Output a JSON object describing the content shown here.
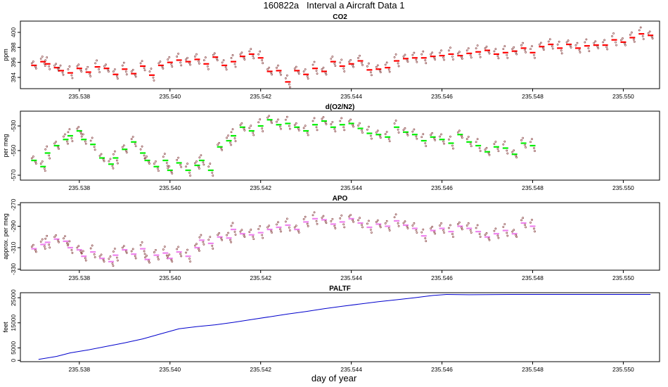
{
  "page_title": "160822a   Interval a Aircraft Data 1",
  "x_axis_label": "day of year",
  "chart_data": [
    {
      "type": "scatter",
      "title": "CO2",
      "ylabel": "ppm",
      "xlim": [
        235.5367,
        235.5508
      ],
      "ylim": [
        392.5,
        401.5
      ],
      "xticks": [
        "235.538",
        "235.540",
        "235.542",
        "235.544",
        "235.546",
        "235.548",
        "235.550"
      ],
      "yticks": [
        "394",
        "396",
        "398",
        "400"
      ],
      "series": [
        {
          "marker": "segments",
          "color": "#ff0000",
          "points": [
            [
              235.537,
              395.6
            ],
            [
              235.5372,
              396.1
            ],
            [
              235.5373,
              395.8
            ],
            [
              235.5375,
              395.3
            ],
            [
              235.5376,
              394.9
            ],
            [
              235.5378,
              394.6
            ],
            [
              235.538,
              395.2
            ],
            [
              235.5382,
              394.7
            ],
            [
              235.5384,
              395.4
            ],
            [
              235.5386,
              395.2
            ],
            [
              235.5388,
              394.4
            ],
            [
              235.539,
              395.1
            ],
            [
              235.5392,
              394.5
            ],
            [
              235.5394,
              395.5
            ],
            [
              235.5396,
              394.3
            ],
            [
              235.5398,
              395.6
            ],
            [
              235.54,
              396.0
            ],
            [
              235.5402,
              396.3
            ],
            [
              235.5404,
              396.1
            ],
            [
              235.5406,
              396.4
            ],
            [
              235.5408,
              395.8
            ],
            [
              235.541,
              396.7
            ],
            [
              235.5412,
              395.6
            ],
            [
              235.5414,
              396.1
            ],
            [
              235.5416,
              396.8
            ],
            [
              235.5418,
              397.1
            ],
            [
              235.542,
              396.6
            ],
            [
              235.5422,
              394.8
            ],
            [
              235.5424,
              394.9
            ],
            [
              235.5426,
              393.4
            ],
            [
              235.5428,
              394.9
            ],
            [
              235.543,
              394.4
            ],
            [
              235.5432,
              395.2
            ],
            [
              235.5434,
              394.8
            ],
            [
              235.5436,
              396.1
            ],
            [
              235.5438,
              395.5
            ],
            [
              235.544,
              395.8
            ],
            [
              235.5442,
              396.2
            ],
            [
              235.5444,
              395.0
            ],
            [
              235.5446,
              395.1
            ],
            [
              235.5448,
              395.3
            ],
            [
              235.545,
              396.2
            ],
            [
              235.5452,
              396.5
            ],
            [
              235.5454,
              396.6
            ],
            [
              235.5456,
              396.6
            ],
            [
              235.5458,
              396.8
            ],
            [
              235.546,
              396.9
            ],
            [
              235.5462,
              397.1
            ],
            [
              235.5464,
              396.9
            ],
            [
              235.5466,
              397.2
            ],
            [
              235.5468,
              397.4
            ],
            [
              235.547,
              397.6
            ],
            [
              235.5472,
              397.1
            ],
            [
              235.5474,
              397.3
            ],
            [
              235.5476,
              397.5
            ],
            [
              235.5478,
              397.9
            ],
            [
              235.548,
              397.3
            ],
            [
              235.5482,
              398.1
            ],
            [
              235.5484,
              398.4
            ],
            [
              235.5486,
              397.9
            ],
            [
              235.5488,
              398.4
            ],
            [
              235.549,
              397.9
            ],
            [
              235.5492,
              398.2
            ],
            [
              235.5494,
              398.3
            ],
            [
              235.5496,
              398.3
            ],
            [
              235.5498,
              399.0
            ],
            [
              235.55,
              398.7
            ],
            [
              235.5502,
              399.3
            ],
            [
              235.5504,
              399.8
            ],
            [
              235.5506,
              399.6
            ]
          ]
        }
      ]
    },
    {
      "type": "scatter",
      "title": "d(O2/N2)",
      "ylabel": "per meg",
      "xlim": [
        235.5367,
        235.5508
      ],
      "ylim": [
        -574,
        -518
      ],
      "xticks": [
        "235.538",
        "235.540",
        "235.542",
        "235.544",
        "235.546",
        "235.548",
        "235.550"
      ],
      "yticks": [
        "-570",
        "-550",
        "-530"
      ],
      "series": [
        {
          "marker": "segments",
          "color": "#00ee00",
          "points": [
            [
              235.537,
              -558
            ],
            [
              235.5372,
              -563
            ],
            [
              235.5373,
              -552
            ],
            [
              235.5375,
              -546
            ],
            [
              235.5377,
              -541
            ],
            [
              235.5378,
              -538
            ],
            [
              235.538,
              -534
            ],
            [
              235.5381,
              -541
            ],
            [
              235.5383,
              -545
            ],
            [
              235.5385,
              -556
            ],
            [
              235.5387,
              -561
            ],
            [
              235.5388,
              -556
            ],
            [
              235.539,
              -549
            ],
            [
              235.5392,
              -543
            ],
            [
              235.5394,
              -552
            ],
            [
              235.5395,
              -558
            ],
            [
              235.5397,
              -563
            ],
            [
              235.5399,
              -558
            ],
            [
              235.54,
              -566
            ],
            [
              235.5402,
              -560
            ],
            [
              235.5404,
              -566
            ],
            [
              235.5406,
              -562
            ],
            [
              235.5407,
              -558
            ],
            [
              235.5409,
              -566
            ],
            [
              235.5411,
              -547
            ],
            [
              235.5413,
              -542
            ],
            [
              235.5414,
              -538
            ],
            [
              235.5416,
              -531
            ],
            [
              235.5418,
              -534
            ],
            [
              235.542,
              -530
            ],
            [
              235.5422,
              -525
            ],
            [
              235.5424,
              -529
            ],
            [
              235.5426,
              -528
            ],
            [
              235.5428,
              -531
            ],
            [
              235.543,
              -534
            ],
            [
              235.5432,
              -529
            ],
            [
              235.5434,
              -526
            ],
            [
              235.5436,
              -531
            ],
            [
              235.5438,
              -529
            ],
            [
              235.544,
              -528
            ],
            [
              235.5442,
              -532
            ],
            [
              235.5444,
              -536
            ],
            [
              235.5446,
              -537
            ],
            [
              235.5448,
              -539
            ],
            [
              235.545,
              -531
            ],
            [
              235.5452,
              -535
            ],
            [
              235.5454,
              -537
            ],
            [
              235.5456,
              -542
            ],
            [
              235.5458,
              -539
            ],
            [
              235.546,
              -541
            ],
            [
              235.5462,
              -544
            ],
            [
              235.5464,
              -537
            ],
            [
              235.5466,
              -543
            ],
            [
              235.5468,
              -546
            ],
            [
              235.547,
              -551
            ],
            [
              235.5472,
              -547
            ],
            [
              235.5474,
              -548
            ],
            [
              235.5476,
              -553
            ],
            [
              235.5478,
              -544
            ],
            [
              235.548,
              -546
            ]
          ]
        }
      ]
    },
    {
      "type": "scatter",
      "title": "APO",
      "ylabel": "approx. per meg",
      "xlim": [
        235.5367,
        235.5508
      ],
      "ylim": [
        -331,
        -268
      ],
      "xticks": [
        "235.538",
        "235.540",
        "235.542",
        "235.544",
        "235.546",
        "235.548",
        "235.550"
      ],
      "yticks": [
        "-330",
        "-310",
        "-290",
        "-270"
      ],
      "series": [
        {
          "marker": "segments",
          "color": "#ee82ee",
          "points": [
            [
              235.537,
              -311
            ],
            [
              235.5372,
              -307
            ],
            [
              235.5373,
              -305
            ],
            [
              235.5375,
              -302
            ],
            [
              235.5377,
              -304
            ],
            [
              235.5378,
              -310
            ],
            [
              235.538,
              -312
            ],
            [
              235.5381,
              -318
            ],
            [
              235.5383,
              -314
            ],
            [
              235.5385,
              -320
            ],
            [
              235.5387,
              -323
            ],
            [
              235.5388,
              -317
            ],
            [
              235.539,
              -312
            ],
            [
              235.5392,
              -316
            ],
            [
              235.5394,
              -311
            ],
            [
              235.5395,
              -321
            ],
            [
              235.5397,
              -317
            ],
            [
              235.5399,
              -315
            ],
            [
              235.54,
              -320
            ],
            [
              235.5402,
              -314
            ],
            [
              235.5404,
              -318
            ],
            [
              235.5406,
              -310
            ],
            [
              235.5407,
              -303
            ],
            [
              235.5409,
              -306
            ],
            [
              235.5411,
              -300
            ],
            [
              235.5413,
              -301
            ],
            [
              235.5414,
              -293
            ],
            [
              235.5416,
              -297
            ],
            [
              235.5418,
              -298
            ],
            [
              235.542,
              -296
            ],
            [
              235.5422,
              -293
            ],
            [
              235.5424,
              -291
            ],
            [
              235.5426,
              -289
            ],
            [
              235.5428,
              -293
            ],
            [
              235.543,
              -286
            ],
            [
              235.5432,
              -283
            ],
            [
              235.5434,
              -284
            ],
            [
              235.5436,
              -288
            ],
            [
              235.5438,
              -286
            ],
            [
              235.544,
              -283
            ],
            [
              235.5442,
              -287
            ],
            [
              235.5444,
              -291
            ],
            [
              235.5446,
              -288
            ],
            [
              235.5448,
              -290
            ],
            [
              235.545,
              -285
            ],
            [
              235.5452,
              -289
            ],
            [
              235.5454,
              -292
            ],
            [
              235.5456,
              -299
            ],
            [
              235.5458,
              -294
            ],
            [
              235.546,
              -292
            ],
            [
              235.5462,
              -295
            ],
            [
              235.5464,
              -290
            ],
            [
              235.5466,
              -292
            ],
            [
              235.5468,
              -295
            ],
            [
              235.547,
              -300
            ],
            [
              235.5472,
              -297
            ],
            [
              235.5474,
              -294
            ],
            [
              235.5476,
              -297
            ],
            [
              235.5478,
              -287
            ],
            [
              235.548,
              -290
            ]
          ]
        }
      ]
    },
    {
      "type": "line",
      "title": "PALTF",
      "ylabel": "feet",
      "xlim": [
        235.5367,
        235.5508
      ],
      "ylim": [
        -500,
        27000
      ],
      "xticks": [
        "235.538",
        "235.540",
        "235.542",
        "235.544",
        "235.546",
        "235.548",
        "235.550"
      ],
      "yticks": [
        "0",
        "5000",
        "15000",
        "25000"
      ],
      "series": [
        {
          "color": "#0000cc",
          "points": [
            [
              235.5371,
              400
            ],
            [
              235.5375,
              1600
            ],
            [
              235.5378,
              3000
            ],
            [
              235.5382,
              4200
            ],
            [
              235.5386,
              5600
            ],
            [
              235.539,
              7000
            ],
            [
              235.5394,
              8600
            ],
            [
              235.5398,
              10600
            ],
            [
              235.5402,
              12600
            ],
            [
              235.5406,
              13500
            ],
            [
              235.541,
              14200
            ],
            [
              235.5414,
              15200
            ],
            [
              235.5418,
              16300
            ],
            [
              235.5422,
              17400
            ],
            [
              235.5426,
              18500
            ],
            [
              235.543,
              19500
            ],
            [
              235.5434,
              20600
            ],
            [
              235.5438,
              21600
            ],
            [
              235.5442,
              22500
            ],
            [
              235.5446,
              23400
            ],
            [
              235.545,
              24200
            ],
            [
              235.5454,
              25000
            ],
            [
              235.5458,
              25900
            ],
            [
              235.5461,
              26300
            ],
            [
              235.5466,
              26200
            ],
            [
              235.5475,
              26300
            ],
            [
              235.5485,
              26300
            ],
            [
              235.5495,
              26300
            ],
            [
              235.5506,
              26300
            ]
          ]
        }
      ]
    }
  ]
}
